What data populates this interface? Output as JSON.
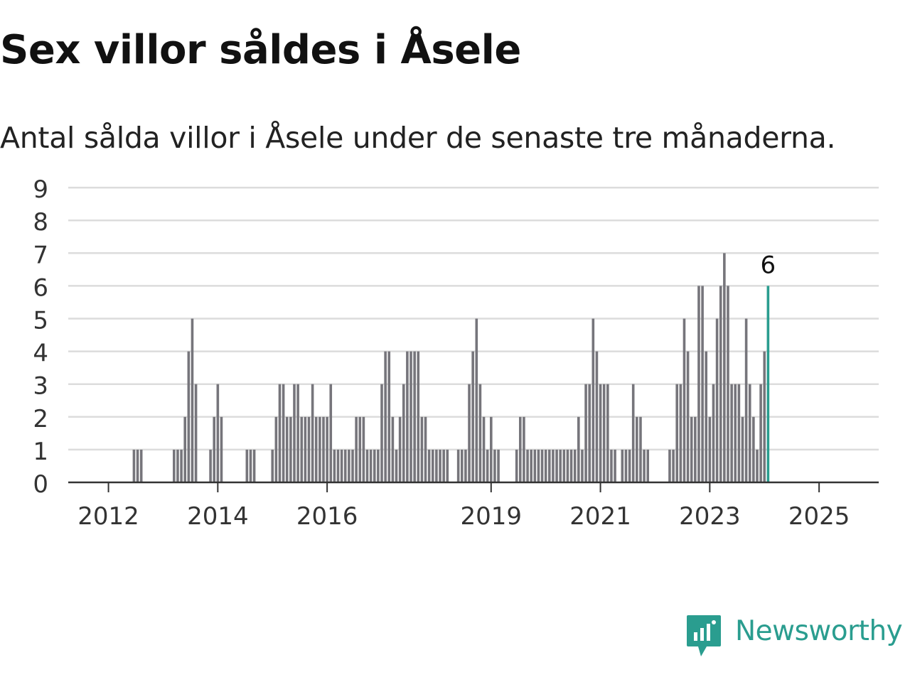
{
  "title": "Sex villor såldes i Åsele",
  "subtitle": "Antal sålda villor i Åsele under de senaste tre månaderna.",
  "brand": {
    "name": "Newsworthy",
    "icon": "newsworthy-logo-icon",
    "color": "#2a9d8f"
  },
  "chart_data": {
    "type": "bar",
    "title": "Sex villor såldes i Åsele",
    "subtitle": "Antal sålda villor i Åsele under de senaste tre månaderna.",
    "x_ticks": [
      "2012",
      "2014",
      "2016",
      "2019",
      "2021",
      "2023",
      "2025"
    ],
    "y_ticks": [
      0,
      1,
      2,
      3,
      4,
      5,
      6,
      7,
      8,
      9
    ],
    "ylim": [
      0,
      9
    ],
    "grid": true,
    "bar_color": "#76757b",
    "highlight_color": "#2a9d8f",
    "highlight_label": "6",
    "values": [
      0,
      0,
      0,
      0,
      0,
      0,
      0,
      0,
      0,
      0,
      0,
      0,
      0,
      0,
      0,
      0,
      0,
      1,
      1,
      1,
      0,
      0,
      0,
      0,
      0,
      0,
      0,
      0,
      1,
      1,
      1,
      2,
      4,
      5,
      3,
      0,
      0,
      0,
      1,
      2,
      3,
      2,
      0,
      0,
      0,
      0,
      0,
      0,
      1,
      1,
      1,
      0,
      0,
      0,
      0,
      1,
      2,
      3,
      3,
      2,
      2,
      3,
      3,
      2,
      2,
      2,
      3,
      2,
      2,
      2,
      2,
      3,
      1,
      1,
      1,
      1,
      1,
      1,
      2,
      2,
      2,
      1,
      1,
      1,
      1,
      3,
      4,
      4,
      2,
      1,
      2,
      3,
      4,
      4,
      4,
      4,
      2,
      2,
      1,
      1,
      1,
      1,
      1,
      1,
      0,
      0,
      1,
      1,
      1,
      3,
      4,
      5,
      3,
      2,
      1,
      2,
      1,
      1,
      0,
      0,
      0,
      0,
      1,
      2,
      2,
      1,
      1,
      1,
      1,
      1,
      1,
      1,
      1,
      1,
      1,
      1,
      1,
      1,
      1,
      2,
      1,
      3,
      3,
      5,
      4,
      3,
      3,
      3,
      1,
      1,
      0,
      1,
      1,
      1,
      3,
      2,
      2,
      1,
      1,
      0,
      0,
      0,
      0,
      0,
      1,
      1,
      3,
      3,
      5,
      4,
      2,
      2,
      6,
      6,
      4,
      2,
      3,
      5,
      6,
      7,
      6,
      3,
      3,
      3,
      2,
      5,
      3,
      2,
      1,
      3,
      4,
      6
    ]
  }
}
